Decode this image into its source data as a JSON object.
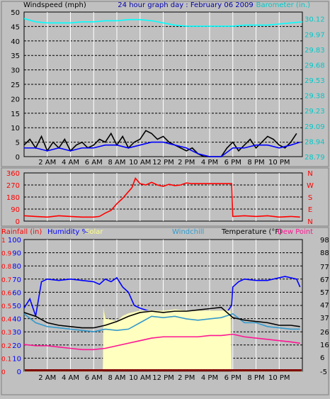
{
  "chart_data": [
    {
      "type": "line",
      "title": "24 hour graph day : February 06 2009",
      "left_axis_label": "Windspeed (mph)",
      "right_axis_label": "Barometer (in.)",
      "left_ticks": [
        "0",
        "5",
        "10",
        "15",
        "20",
        "25",
        "30",
        "35",
        "40",
        "45",
        "50"
      ],
      "right_ticks": [
        "28.79",
        "28.94",
        "29.09",
        "29.23",
        "29.38",
        "29.53",
        "29.68",
        "29.83",
        "29.97",
        "30.12"
      ],
      "ylim_left": [
        0,
        50
      ],
      "ylim_right": [
        28.79,
        30.12
      ],
      "x_ticks": [
        "2 AM",
        "4 AM",
        "6 AM",
        "8 AM",
        "10 AM",
        "12 PM",
        "2 PM",
        "4 PM",
        "6 PM",
        "8 PM",
        "10 PM"
      ],
      "x_hours": [
        2,
        4,
        6,
        8,
        10,
        12,
        14,
        16,
        18,
        20,
        22
      ],
      "xlim_hours": [
        0,
        24
      ],
      "grid": true,
      "series": [
        {
          "name": "Windspeed (mph)",
          "color": "#000000",
          "axis": "left",
          "x": [
            0,
            0.5,
            1,
            1.5,
            2,
            2.5,
            3,
            3.5,
            4,
            4.5,
            5,
            5.5,
            6,
            6.5,
            7,
            7.5,
            8,
            8.5,
            9,
            9.5,
            10,
            10.5,
            11,
            11.5,
            12,
            12.5,
            13,
            13.5,
            14,
            14.5,
            15,
            15.5,
            16,
            16.5,
            17,
            17.5,
            18,
            18.5,
            19,
            19.5,
            20,
            20.5,
            21,
            21.5,
            22,
            22.5,
            23,
            23.5
          ],
          "values": [
            4,
            6,
            3,
            7,
            2,
            5,
            3,
            6,
            2,
            4,
            5,
            3,
            4,
            6,
            5,
            8,
            4,
            7,
            3,
            5,
            6,
            9,
            8,
            6,
            7,
            5,
            4,
            3,
            2,
            3,
            1,
            0,
            0,
            0,
            0,
            3,
            5,
            2,
            4,
            6,
            3,
            5,
            7,
            6,
            4,
            3,
            5,
            8
          ]
        },
        {
          "name": "Windspeed avg",
          "color": "#0000ff",
          "axis": "left",
          "x": [
            0,
            1,
            2,
            3,
            4,
            5,
            6,
            7,
            8,
            9,
            10,
            11,
            12,
            13,
            14,
            15,
            16,
            17,
            18,
            19,
            20,
            21,
            22,
            23,
            23.8
          ],
          "values": [
            3,
            3,
            2,
            3,
            2,
            3,
            3,
            4,
            4,
            3,
            4,
            5,
            5,
            4,
            3,
            1,
            0,
            0,
            3,
            3,
            4,
            4,
            3,
            4,
            5
          ]
        },
        {
          "name": "Barometer (in.)",
          "color": "#00ffff",
          "axis": "right",
          "x": [
            0,
            1,
            2,
            3,
            4,
            5,
            6,
            7,
            8,
            9,
            10,
            11,
            12,
            13,
            14,
            15,
            16,
            17,
            18,
            19,
            20,
            21,
            22,
            23,
            24
          ],
          "values": [
            30.06,
            30.03,
            30.02,
            30.02,
            30.02,
            30.03,
            30.03,
            30.04,
            30.04,
            30.05,
            30.05,
            30.04,
            30.02,
            30.0,
            29.99,
            29.99,
            29.99,
            29.99,
            29.99,
            30.0,
            30.0,
            30.0,
            30.01,
            30.02,
            30.03
          ]
        }
      ]
    },
    {
      "type": "line",
      "left_ticks": [
        "0",
        "90",
        "180",
        "270",
        "360"
      ],
      "ylim": [
        0,
        360
      ],
      "right_compass": [
        "N",
        "W",
        "S",
        "E",
        "N"
      ],
      "x_hours": [
        2,
        4,
        6,
        8,
        10,
        12,
        14,
        16,
        18,
        20,
        22
      ],
      "xlim_hours": [
        0,
        24
      ],
      "grid": true,
      "series": [
        {
          "name": "Wind direction",
          "color": "#ff0000",
          "x": [
            0,
            1,
            2,
            3,
            4,
            5,
            6,
            6.5,
            7,
            7.5,
            8,
            8.5,
            9,
            9.3,
            9.6,
            10,
            10.5,
            11,
            11.5,
            12,
            12.5,
            13,
            13.5,
            14,
            14.5,
            15,
            16,
            17,
            17.9,
            18,
            19,
            20,
            21,
            22,
            23,
            23.8
          ],
          "values": [
            40,
            35,
            30,
            40,
            35,
            30,
            30,
            35,
            60,
            80,
            130,
            170,
            220,
            250,
            320,
            280,
            270,
            290,
            270,
            260,
            275,
            265,
            270,
            285,
            280,
            280,
            280,
            280,
            280,
            35,
            40,
            35,
            40,
            30,
            35,
            30
          ]
        }
      ]
    },
    {
      "type": "line",
      "left_axis_labels": {
        "rainfall": "Rainfall (in)",
        "humidity": "Humidity %",
        "solar": "Solar"
      },
      "middle_label": "Windchill",
      "right_axis_labels": {
        "temperature": "Temperature (°F)",
        "dew_point": "Dew Point"
      },
      "rain_ticks": [
        "0",
        "0.1",
        "0.2",
        "0.3",
        "0.4",
        "0.5",
        "0.6",
        "0.7",
        "0.8",
        "0.9",
        "1"
      ],
      "humidity_ticks": [
        "0",
        "10",
        "20",
        "30",
        "40",
        "50",
        "60",
        "70",
        "80",
        "90",
        "100"
      ],
      "temp_ticks": [
        "-5",
        "6",
        "16",
        "26",
        "37",
        "47",
        "57",
        "67",
        "77",
        "88",
        "98"
      ],
      "ylim_humidity": [
        0,
        100
      ],
      "ylim_temp": [
        -5,
        98
      ],
      "x_ticks": [
        "2 AM",
        "4 AM",
        "6 AM",
        "8 AM",
        "10 AM",
        "12 PM",
        "2 PM",
        "4 PM",
        "6 PM",
        "8 PM",
        "10 PM"
      ],
      "x_hours": [
        2,
        4,
        6,
        8,
        10,
        12,
        14,
        16,
        18,
        20,
        22
      ],
      "xlim_hours": [
        0,
        24
      ],
      "grid": true,
      "series": [
        {
          "name": "Humidity",
          "color": "#0000ff",
          "axis": "humidity",
          "x": [
            0,
            0.5,
            1,
            1.5,
            2,
            3,
            4,
            5,
            6,
            6.5,
            7,
            7.5,
            8,
            8.5,
            9,
            9.5,
            10,
            11,
            12,
            12.5,
            13,
            14,
            14.5,
            15,
            16,
            16.5,
            17,
            17.5,
            17.9,
            18,
            18.5,
            19,
            20,
            21,
            22,
            22.5,
            23,
            23.5,
            23.8
          ],
          "values": [
            48,
            55,
            42,
            68,
            70,
            69,
            70,
            69,
            68,
            66,
            70,
            68,
            71,
            64,
            60,
            50,
            48,
            45,
            44,
            40,
            42,
            41,
            39,
            38,
            37,
            38,
            39,
            45,
            50,
            64,
            68,
            70,
            69,
            69,
            71,
            72,
            71,
            70,
            64
          ]
        },
        {
          "name": "Solar",
          "color": "#ffffc0",
          "axis": "humidity",
          "fill": true,
          "x": [
            0,
            6,
            6.8,
            6.85,
            7,
            8,
            8.5,
            9,
            10,
            11,
            12,
            13,
            14,
            15,
            16,
            17,
            17.8,
            17.9,
            24
          ],
          "values": [
            0,
            0,
            0,
            48,
            40,
            38,
            42,
            44,
            46,
            46,
            46,
            47,
            46,
            46,
            46,
            46,
            46,
            0,
            0
          ]
        },
        {
          "name": "Windchill",
          "color": "#3399cc",
          "axis": "temp",
          "x": [
            0,
            1,
            2,
            3,
            4,
            5,
            6,
            7,
            8,
            9,
            10,
            11,
            12,
            13,
            14,
            15,
            16,
            17,
            18,
            19,
            20,
            21,
            22,
            23,
            23.8
          ],
          "values": [
            40,
            33,
            30,
            29,
            28,
            27,
            26,
            28,
            27,
            28,
            33,
            38,
            37,
            38,
            36,
            35,
            36,
            37,
            40,
            33,
            33,
            30,
            29,
            28,
            28
          ]
        },
        {
          "name": "Temperature",
          "color": "#000000",
          "axis": "temp",
          "x": [
            0,
            1,
            2,
            3,
            4,
            5,
            6,
            7,
            8,
            9,
            10,
            11,
            12,
            13,
            14,
            15,
            16,
            17,
            18,
            19,
            20,
            21,
            22,
            23,
            23.8
          ],
          "values": [
            41,
            38,
            33,
            31,
            30,
            29,
            29,
            31,
            34,
            38,
            41,
            42,
            41,
            42,
            42,
            43,
            44,
            45,
            37,
            35,
            34,
            33,
            31,
            31,
            30
          ]
        },
        {
          "name": "Dew Point",
          "color": "#ff1493",
          "axis": "temp",
          "x": [
            0,
            1,
            2,
            3,
            4,
            5,
            6,
            7,
            8,
            9,
            10,
            11,
            12,
            13,
            14,
            15,
            16,
            17,
            18,
            19,
            20,
            21,
            22,
            23,
            23.8
          ],
          "values": [
            16,
            15,
            15,
            14,
            13,
            12,
            12,
            13,
            15,
            17,
            19,
            21,
            22,
            22,
            22,
            22,
            23,
            23,
            24,
            22,
            21,
            20,
            19,
            18,
            17
          ]
        }
      ]
    }
  ]
}
